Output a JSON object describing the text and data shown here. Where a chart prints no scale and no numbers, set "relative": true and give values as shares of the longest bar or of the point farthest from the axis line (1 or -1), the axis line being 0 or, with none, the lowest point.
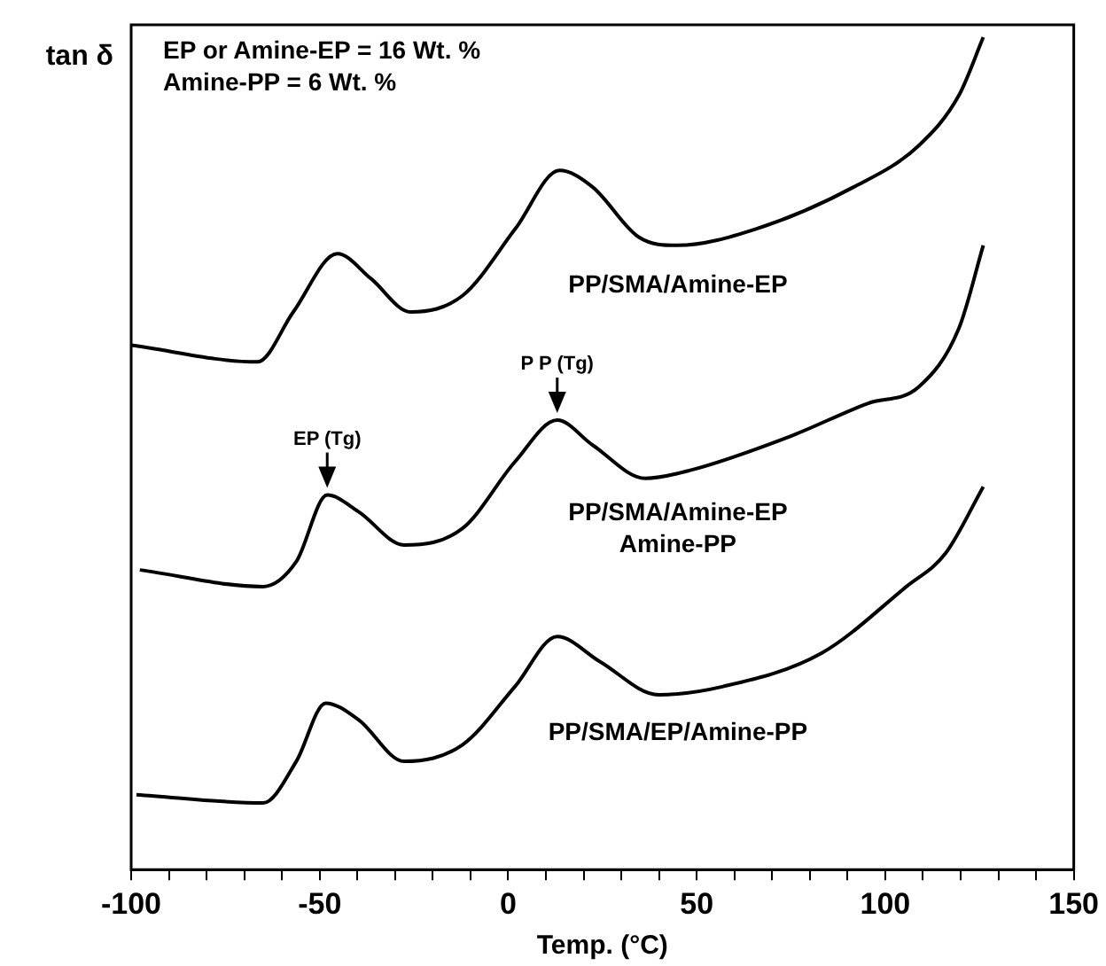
{
  "chart_data": {
    "type": "line",
    "relative": true,
    "xlabel": "Temp. (°C)",
    "ylabel": "tan δ",
    "xlim": [
      -100,
      150
    ],
    "xticks": [
      -100,
      {
        "value": -90,
        "label": null
      },
      {
        "value": -80,
        "label": null
      },
      {
        "value": -70,
        "label": null
      },
      {
        "value": -60,
        "label": null
      },
      -50,
      {
        "value": -40,
        "label": null
      },
      {
        "value": -30,
        "label": null
      },
      {
        "value": -20,
        "label": null
      },
      {
        "value": -10,
        "label": null
      },
      0,
      {
        "value": 10,
        "label": null
      },
      {
        "value": 20,
        "label": null
      },
      {
        "value": 30,
        "label": null
      },
      {
        "value": 40,
        "label": null
      },
      50,
      {
        "value": 60,
        "label": null
      },
      {
        "value": 70,
        "label": null
      },
      {
        "value": 80,
        "label": null
      },
      {
        "value": 90,
        "label": null
      },
      100,
      {
        "value": 110,
        "label": null
      },
      {
        "value": 120,
        "label": null
      },
      {
        "value": 130,
        "label": null
      },
      {
        "value": 140,
        "label": null
      },
      150
    ],
    "grid": false,
    "legend": false,
    "marker": "none",
    "line_style": "solid",
    "series": [
      {
        "name": "PP/SMA/Amine-EP",
        "color": "#000000",
        "x": [
          -100,
          -66.5,
          -57,
          -45.3,
          -36.4,
          -25.9,
          -12,
          1.9,
          13.6,
          22.4,
          34.6,
          44.9,
          65.9,
          91.6,
          108.9,
          119.5,
          126
        ],
        "values": [
          0.63,
          0.61,
          0.67,
          0.74,
          0.71,
          0.67,
          0.69,
          0.77,
          0.84,
          0.82,
          0.76,
          0.75,
          0.77,
          0.82,
          0.87,
          0.93,
          1.0
        ]
      },
      {
        "name": "PP/SMA/Amine-EP\nAmine-PP",
        "color": "#000000",
        "x": [
          -97.7,
          -65,
          -56.2,
          -48,
          -39.7,
          -27.6,
          -12.1,
          1.8,
          13,
          22.4,
          36.4,
          48.5,
          74.5,
          95.3,
          108.9,
          119.5,
          126
        ],
        "values": [
          0.36,
          0.34,
          0.37,
          0.45,
          0.43,
          0.39,
          0.41,
          0.49,
          0.54,
          0.51,
          0.47,
          0.48,
          0.52,
          0.56,
          0.58,
          0.65,
          0.75
        ]
      },
      {
        "name": "PP/SMA/EP/Amine-PP",
        "color": "#000000",
        "x": [
          -98.6,
          -65,
          -56.2,
          -48.4,
          -39.7,
          -27.6,
          -12.1,
          1.8,
          13,
          24.3,
          39.9,
          57,
          83.1,
          105.6,
          116,
          126
        ],
        "values": [
          0.09,
          0.08,
          0.13,
          0.2,
          0.18,
          0.13,
          0.15,
          0.22,
          0.28,
          0.25,
          0.21,
          0.22,
          0.26,
          0.34,
          0.38,
          0.46
        ]
      }
    ],
    "annotations": [
      "EP or Amine-EP = 16 Wt. %",
      "Amine-PP = 6 Wt. %",
      {
        "text": "EP (Tg)",
        "x": -48,
        "y": 0.45
      },
      {
        "text": "P P (Tg)",
        "x": 13,
        "y": 0.54
      }
    ]
  }
}
